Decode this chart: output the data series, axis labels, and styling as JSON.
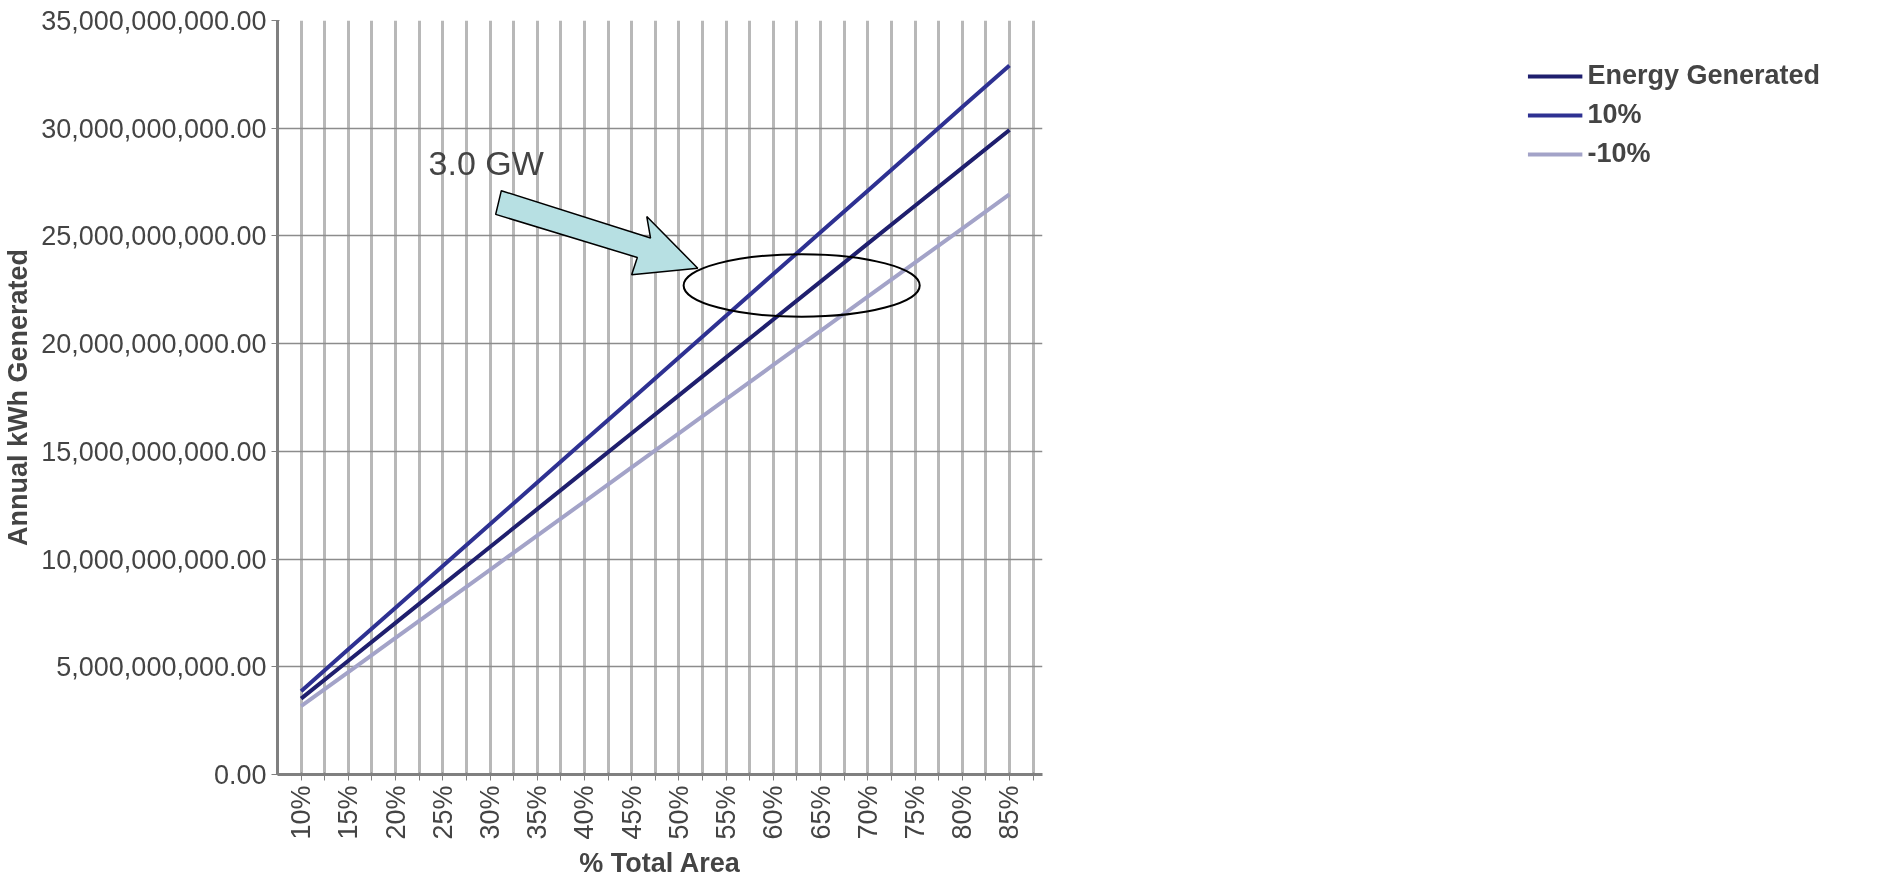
{
  "chart_data": {
    "type": "line",
    "xlabel": "% Total Area",
    "ylabel": "Annual kWh Generated",
    "x": [
      10,
      15,
      20,
      25,
      30,
      35,
      40,
      45,
      50,
      55,
      60,
      65,
      70,
      75,
      80,
      85
    ],
    "series": [
      {
        "name": "Energy Generated",
        "color": "#1f1f6e",
        "values": [
          3520000000,
          5280000000,
          7040000000,
          8800000000,
          10560000000,
          12320000000,
          14080000000,
          15840000000,
          17600000000,
          19360000000,
          21120000000,
          22880000000,
          24640000000,
          26400000000,
          28160000000,
          29920000000
        ]
      },
      {
        "name": "10%",
        "color": "#2e3192",
        "values": [
          3870000000,
          5810000000,
          7740000000,
          9680000000,
          11620000000,
          13550000000,
          15490000000,
          17420000000,
          19360000000,
          21300000000,
          23230000000,
          25170000000,
          27100000000,
          29040000000,
          30980000000,
          32910000000
        ]
      },
      {
        "name": "-10%",
        "color": "#a3a3c8",
        "values": [
          3170000000,
          4750000000,
          6340000000,
          7920000000,
          9500000000,
          11090000000,
          12670000000,
          14260000000,
          15840000000,
          17420000000,
          19010000000,
          20590000000,
          22180000000,
          23760000000,
          25340000000,
          26930000000
        ]
      }
    ],
    "xlim": [
      7.5,
      88.5
    ],
    "xticks": [
      {
        "value": 10,
        "label": "10%"
      },
      {
        "value": 12.5,
        "label": null
      },
      {
        "value": 15,
        "label": "15%"
      },
      {
        "value": 17.5,
        "label": null
      },
      {
        "value": 20,
        "label": "20%"
      },
      {
        "value": 22.5,
        "label": null
      },
      {
        "value": 25,
        "label": "25%"
      },
      {
        "value": 27.5,
        "label": null
      },
      {
        "value": 30,
        "label": "30%"
      },
      {
        "value": 32.5,
        "label": null
      },
      {
        "value": 35,
        "label": "35%"
      },
      {
        "value": 37.5,
        "label": null
      },
      {
        "value": 40,
        "label": "40%"
      },
      {
        "value": 42.5,
        "label": null
      },
      {
        "value": 45,
        "label": "45%"
      },
      {
        "value": 47.5,
        "label": null
      },
      {
        "value": 50,
        "label": "50%"
      },
      {
        "value": 52.5,
        "label": null
      },
      {
        "value": 55,
        "label": "55%"
      },
      {
        "value": 57.5,
        "label": null
      },
      {
        "value": 60,
        "label": "60%"
      },
      {
        "value": 62.5,
        "label": null
      },
      {
        "value": 65,
        "label": "65%"
      },
      {
        "value": 67.5,
        "label": null
      },
      {
        "value": 70,
        "label": "70%"
      },
      {
        "value": 72.5,
        "label": null
      },
      {
        "value": 75,
        "label": "75%"
      },
      {
        "value": 77.5,
        "label": null
      },
      {
        "value": 80,
        "label": "80%"
      },
      {
        "value": 82.5,
        "label": null
      },
      {
        "value": 85,
        "label": "85%"
      },
      {
        "value": 87.5,
        "label": null
      }
    ],
    "ylim": [
      0,
      35000000000
    ],
    "yticks": [
      {
        "value": 0,
        "label": "0.00"
      },
      {
        "value": 5000000000,
        "label": "5,000,000,000.00"
      },
      {
        "value": 10000000000,
        "label": "10,000,000,000.00"
      },
      {
        "value": 15000000000,
        "label": "15,000,000,000.00"
      },
      {
        "value": 20000000000,
        "label": "20,000,000,000.00"
      },
      {
        "value": 25000000000,
        "label": "25,000,000,000.00"
      },
      {
        "value": 30000000000,
        "label": "30,000,000,000.00"
      },
      {
        "value": 35000000000,
        "label": "35,000,000,000.00"
      }
    ],
    "annotations": [
      "3.0 GW"
    ],
    "grid": true,
    "legend": "right",
    "marker": "none",
    "line_style": "solid"
  }
}
